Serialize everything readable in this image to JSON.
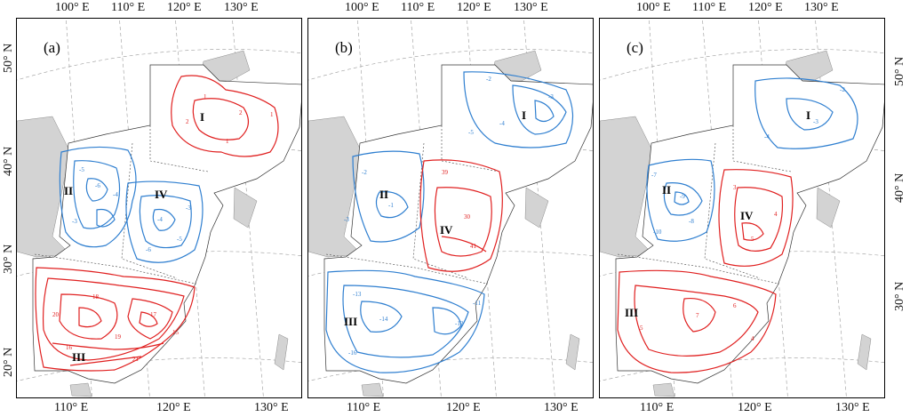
{
  "top_longitude_ticks": [
    "100° E",
    "110° E",
    "120° E",
    "130° E"
  ],
  "bottom_longitude_ticks": [
    "110° E",
    "120° E",
    "130° E"
  ],
  "left_latitude_ticks": [
    "50° N",
    "40° N",
    "30° N",
    "20° N"
  ],
  "right_latitude_ticks": [
    "50° N",
    "40° N",
    "30° N"
  ],
  "colors": {
    "positive_contour": "#e02020",
    "negative_contour": "#2f7fd0",
    "neighbor_land": "#d3d3d3",
    "graticule": "#9a9a9a"
  },
  "panels": [
    {
      "label": "(a)",
      "regions": [
        "I",
        "II",
        "III",
        "IV"
      ],
      "contour_labels": {
        "I": [
          "1",
          "2",
          "1",
          "1",
          "2"
        ],
        "II": [
          "-5",
          "-4",
          "-3",
          "-6"
        ],
        "III": [
          "20",
          "18",
          "17",
          "15",
          "21",
          "19",
          "16"
        ],
        "IV": [
          "-4",
          "-3",
          "-5",
          "-6"
        ]
      }
    },
    {
      "label": "(b)",
      "regions": [
        "I",
        "II",
        "III",
        "IV"
      ],
      "contour_labels": {
        "I": [
          "-2",
          "-3",
          "-4",
          "-5"
        ],
        "II": [
          "-1",
          "-2",
          "-3"
        ],
        "III": [
          "-14",
          "-13",
          "-12",
          "-16",
          "-11"
        ],
        "IV": [
          "39",
          "30",
          "41"
        ]
      }
    },
    {
      "label": "(c)",
      "regions": [
        "I",
        "II",
        "III",
        "IV"
      ],
      "contour_labels": {
        "I": [
          "-3",
          "-4",
          "-2"
        ],
        "II": [
          "-8",
          "-9",
          "-10",
          "-7"
        ],
        "III": [
          "7",
          "5",
          "6",
          "4"
        ],
        "IV": [
          "4",
          "3",
          "5"
        ]
      }
    }
  ]
}
